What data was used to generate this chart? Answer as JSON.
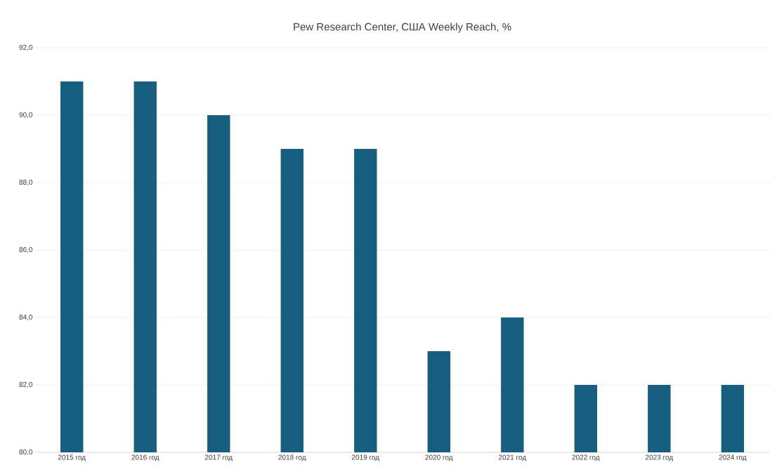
{
  "chart_data": {
    "type": "bar",
    "title": "Pew Research Center, США Weekly Reach, %",
    "categories": [
      "2015 год",
      "2016 год",
      "2017 год",
      "2018 год",
      "2019 год",
      "2020 год",
      "2021 год",
      "2022 год",
      "2023 год",
      "2024 год"
    ],
    "values": [
      91,
      91,
      90,
      89,
      89,
      83,
      84,
      82,
      82,
      82
    ],
    "color": "#175f80",
    "ylim": [
      80,
      92
    ],
    "yticks": [
      {
        "value": 80,
        "label": "80,0"
      },
      {
        "value": 82,
        "label": "82,0"
      },
      {
        "value": 84,
        "label": "84,0"
      },
      {
        "value": 86,
        "label": "86,0"
      },
      {
        "value": 88,
        "label": "88,0"
      },
      {
        "value": 90,
        "label": "90,0"
      },
      {
        "value": 92,
        "label": "92,0"
      }
    ],
    "grid": "y"
  }
}
